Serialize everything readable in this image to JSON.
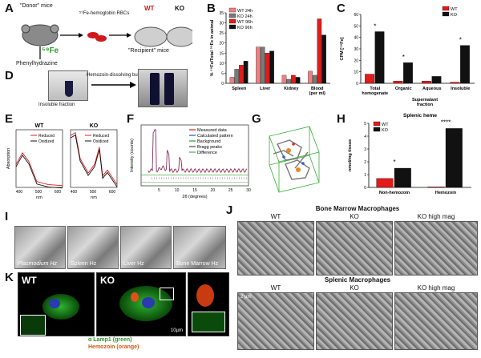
{
  "panels": {
    "A": {
      "label": "A",
      "donor": "\"Donor\" mice",
      "rbc": "⁵⁹Fe-hemoglobin RBCs",
      "wt": "WT",
      "ko": "KO",
      "drug": "Phenylhydrazine",
      "fe": "⁵⁹Fe",
      "recipient": "\"Recipient\" mice"
    },
    "B": {
      "label": "B"
    },
    "C": {
      "label": "C"
    },
    "D": {
      "label": "D",
      "left": "Insoluble fraction",
      "arrow": "Hemozoin-dissolving buffer"
    },
    "E": {
      "label": "E"
    },
    "F": {
      "label": "F"
    },
    "G": {
      "label": "G"
    },
    "H": {
      "label": "H"
    },
    "I": {
      "label": "I",
      "captions": [
        "Plasmodium Hz",
        "Spleen Hz",
        "Liver Hz",
        "Bone Marrow Hz"
      ],
      "scales": [
        "1 µm",
        "1 µm",
        "1 µm",
        "2 µm"
      ]
    },
    "J": {
      "label": "J",
      "top_title": "Bone Marrow Macrophages",
      "bottom_title": "Splenic Macrophages",
      "cols": [
        "WT",
        "KO",
        "KO high mag"
      ],
      "scale": "2 µm"
    },
    "K": {
      "label": "K",
      "wt": "WT",
      "ko": "KO",
      "scale": "10µm",
      "legend1": "α Lamp1 (green)",
      "legend2": "Hemozoin (orange)"
    }
  },
  "chart_data": [
    {
      "type": "bar",
      "panel": "B",
      "ylabel": "% ⁵⁹Fe/Total ⁵⁹Fe in animal",
      "categories": [
        "Spleen",
        "Liver",
        "Kidney",
        "Blood\n(per ml)"
      ],
      "ylim": [
        0,
        35
      ],
      "yticks": [
        0,
        5,
        10,
        15,
        20,
        25,
        30,
        35
      ],
      "series": [
        {
          "name": "WT 24h",
          "color": "#f08080",
          "values": [
            3,
            18,
            4,
            6
          ]
        },
        {
          "name": "KO 24h",
          "color": "#7a7a7a",
          "values": [
            7,
            18,
            2,
            4
          ]
        },
        {
          "name": "WT 96h",
          "color": "#e31b1b",
          "values": [
            9,
            15,
            4,
            32
          ]
        },
        {
          "name": "KO 96h",
          "color": "#111111",
          "values": [
            11,
            16,
            3,
            24
          ]
        }
      ]
    },
    {
      "type": "bar",
      "panel": "C",
      "ylabel": "CPM [⁵⁹Fe]",
      "categories": [
        "Total\nhomogenate",
        "Organic",
        "Aqueous",
        "Insoluble"
      ],
      "group_label": "Supernatant\nfraction",
      "ylim": [
        0,
        60
      ],
      "yticks": [
        0,
        10,
        20,
        30,
        40,
        50,
        60
      ],
      "series": [
        {
          "name": "WT",
          "color": "#e31b1b",
          "values": [
            8,
            2,
            2,
            1
          ]
        },
        {
          "name": "KO",
          "color": "#111111",
          "values": [
            45,
            18,
            6,
            33
          ]
        }
      ],
      "annotations": [
        "*",
        "*",
        "*"
      ]
    },
    {
      "type": "line",
      "panel": "E",
      "ylabel": "Absorption",
      "xlabel": "nm",
      "subplots": [
        {
          "title": "WT",
          "xticks": [
            400,
            500,
            600
          ],
          "series": [
            {
              "name": "Reduced",
              "color": "#e31b1b"
            },
            {
              "name": "Oxidized",
              "color": "#111111"
            }
          ]
        },
        {
          "title": "KO",
          "xticks": [
            400,
            500,
            600
          ],
          "series": [
            {
              "name": "Reduced",
              "color": "#e31b1b"
            },
            {
              "name": "Oxidized",
              "color": "#111111"
            }
          ]
        }
      ]
    },
    {
      "type": "line",
      "panel": "F",
      "ylabel": "Intensity (counts)",
      "xlabel": "2θ (degrees)",
      "xlim": [
        0,
        30
      ],
      "xticks": [
        5,
        10,
        15,
        20,
        25,
        30
      ],
      "series": [
        {
          "name": "Measured data",
          "color": "#e31b1b"
        },
        {
          "name": "Calculated pattern",
          "color": "#1a56c4"
        },
        {
          "name": "Background",
          "color": "#20a020"
        },
        {
          "name": "Bragg peaks",
          "color": "#444444"
        },
        {
          "name": "Difference",
          "color": "#5aa05a"
        }
      ]
    },
    {
      "type": "bar",
      "panel": "H",
      "title": "Splenic heme",
      "ylabel": "nmol/mg tissue",
      "categories": [
        "Non-hemozoin",
        "Hemozoin"
      ],
      "ylim": [
        0,
        5
      ],
      "yticks": [
        0,
        1,
        2,
        3,
        4,
        5
      ],
      "series": [
        {
          "name": "WT",
          "color": "#e31b1b",
          "values": [
            0.7,
            0.05
          ]
        },
        {
          "name": "KO",
          "color": "#111111",
          "values": [
            1.5,
            4.6
          ]
        }
      ],
      "annotations": [
        "*",
        "****"
      ]
    }
  ]
}
